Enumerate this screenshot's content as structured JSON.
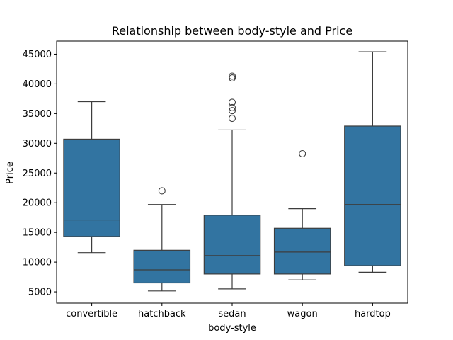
{
  "chart_data": {
    "type": "box",
    "title": "Relationship between body-style and Price",
    "xlabel": "body-style",
    "ylabel": "Price",
    "categories": [
      "convertible",
      "hatchback",
      "sedan",
      "wagon",
      "hardtop"
    ],
    "ylim": [
      3100,
      47200
    ],
    "yticks": [
      5000,
      10000,
      15000,
      20000,
      25000,
      30000,
      35000,
      40000,
      45000
    ],
    "grid": false,
    "box_color": "#3274a1",
    "line_color": "#3d3d3d",
    "boxes": [
      {
        "category": "convertible",
        "whisker_low": 11600,
        "q1": 14300,
        "median": 17100,
        "q3": 30700,
        "whisker_high": 37000,
        "outliers": []
      },
      {
        "category": "hatchback",
        "whisker_low": 5150,
        "q1": 6500,
        "median": 8700,
        "q3": 12000,
        "whisker_high": 19700,
        "outliers": [
          22000
        ]
      },
      {
        "category": "sedan",
        "whisker_low": 5500,
        "q1": 8000,
        "median": 11100,
        "q3": 17900,
        "whisker_high": 32250,
        "outliers": [
          34200,
          35500,
          36000,
          36900,
          41000,
          41300
        ]
      },
      {
        "category": "wagon",
        "whisker_low": 7000,
        "q1": 8000,
        "median": 11700,
        "q3": 15700,
        "whisker_high": 19000,
        "outliers": [
          28250
        ]
      },
      {
        "category": "hardtop",
        "whisker_low": 8300,
        "q1": 9400,
        "median": 19700,
        "q3": 32900,
        "whisker_high": 45400,
        "outliers": []
      }
    ]
  }
}
